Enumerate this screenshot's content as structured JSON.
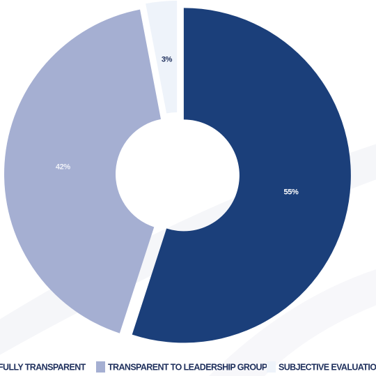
{
  "chart_data": {
    "type": "pie",
    "categories": [
      "FULLY TRANSPARENT",
      "TRANSPARENT TO LEADERSHIP GROUP",
      "SUBJECTIVE EVALUATION"
    ],
    "values": [
      55,
      42,
      3
    ],
    "value_labels": [
      "55%",
      "42%",
      "3%"
    ],
    "colors": [
      "#1b3f7a",
      "#a5afd2",
      "#eef3fa"
    ],
    "donut": true
  }
}
